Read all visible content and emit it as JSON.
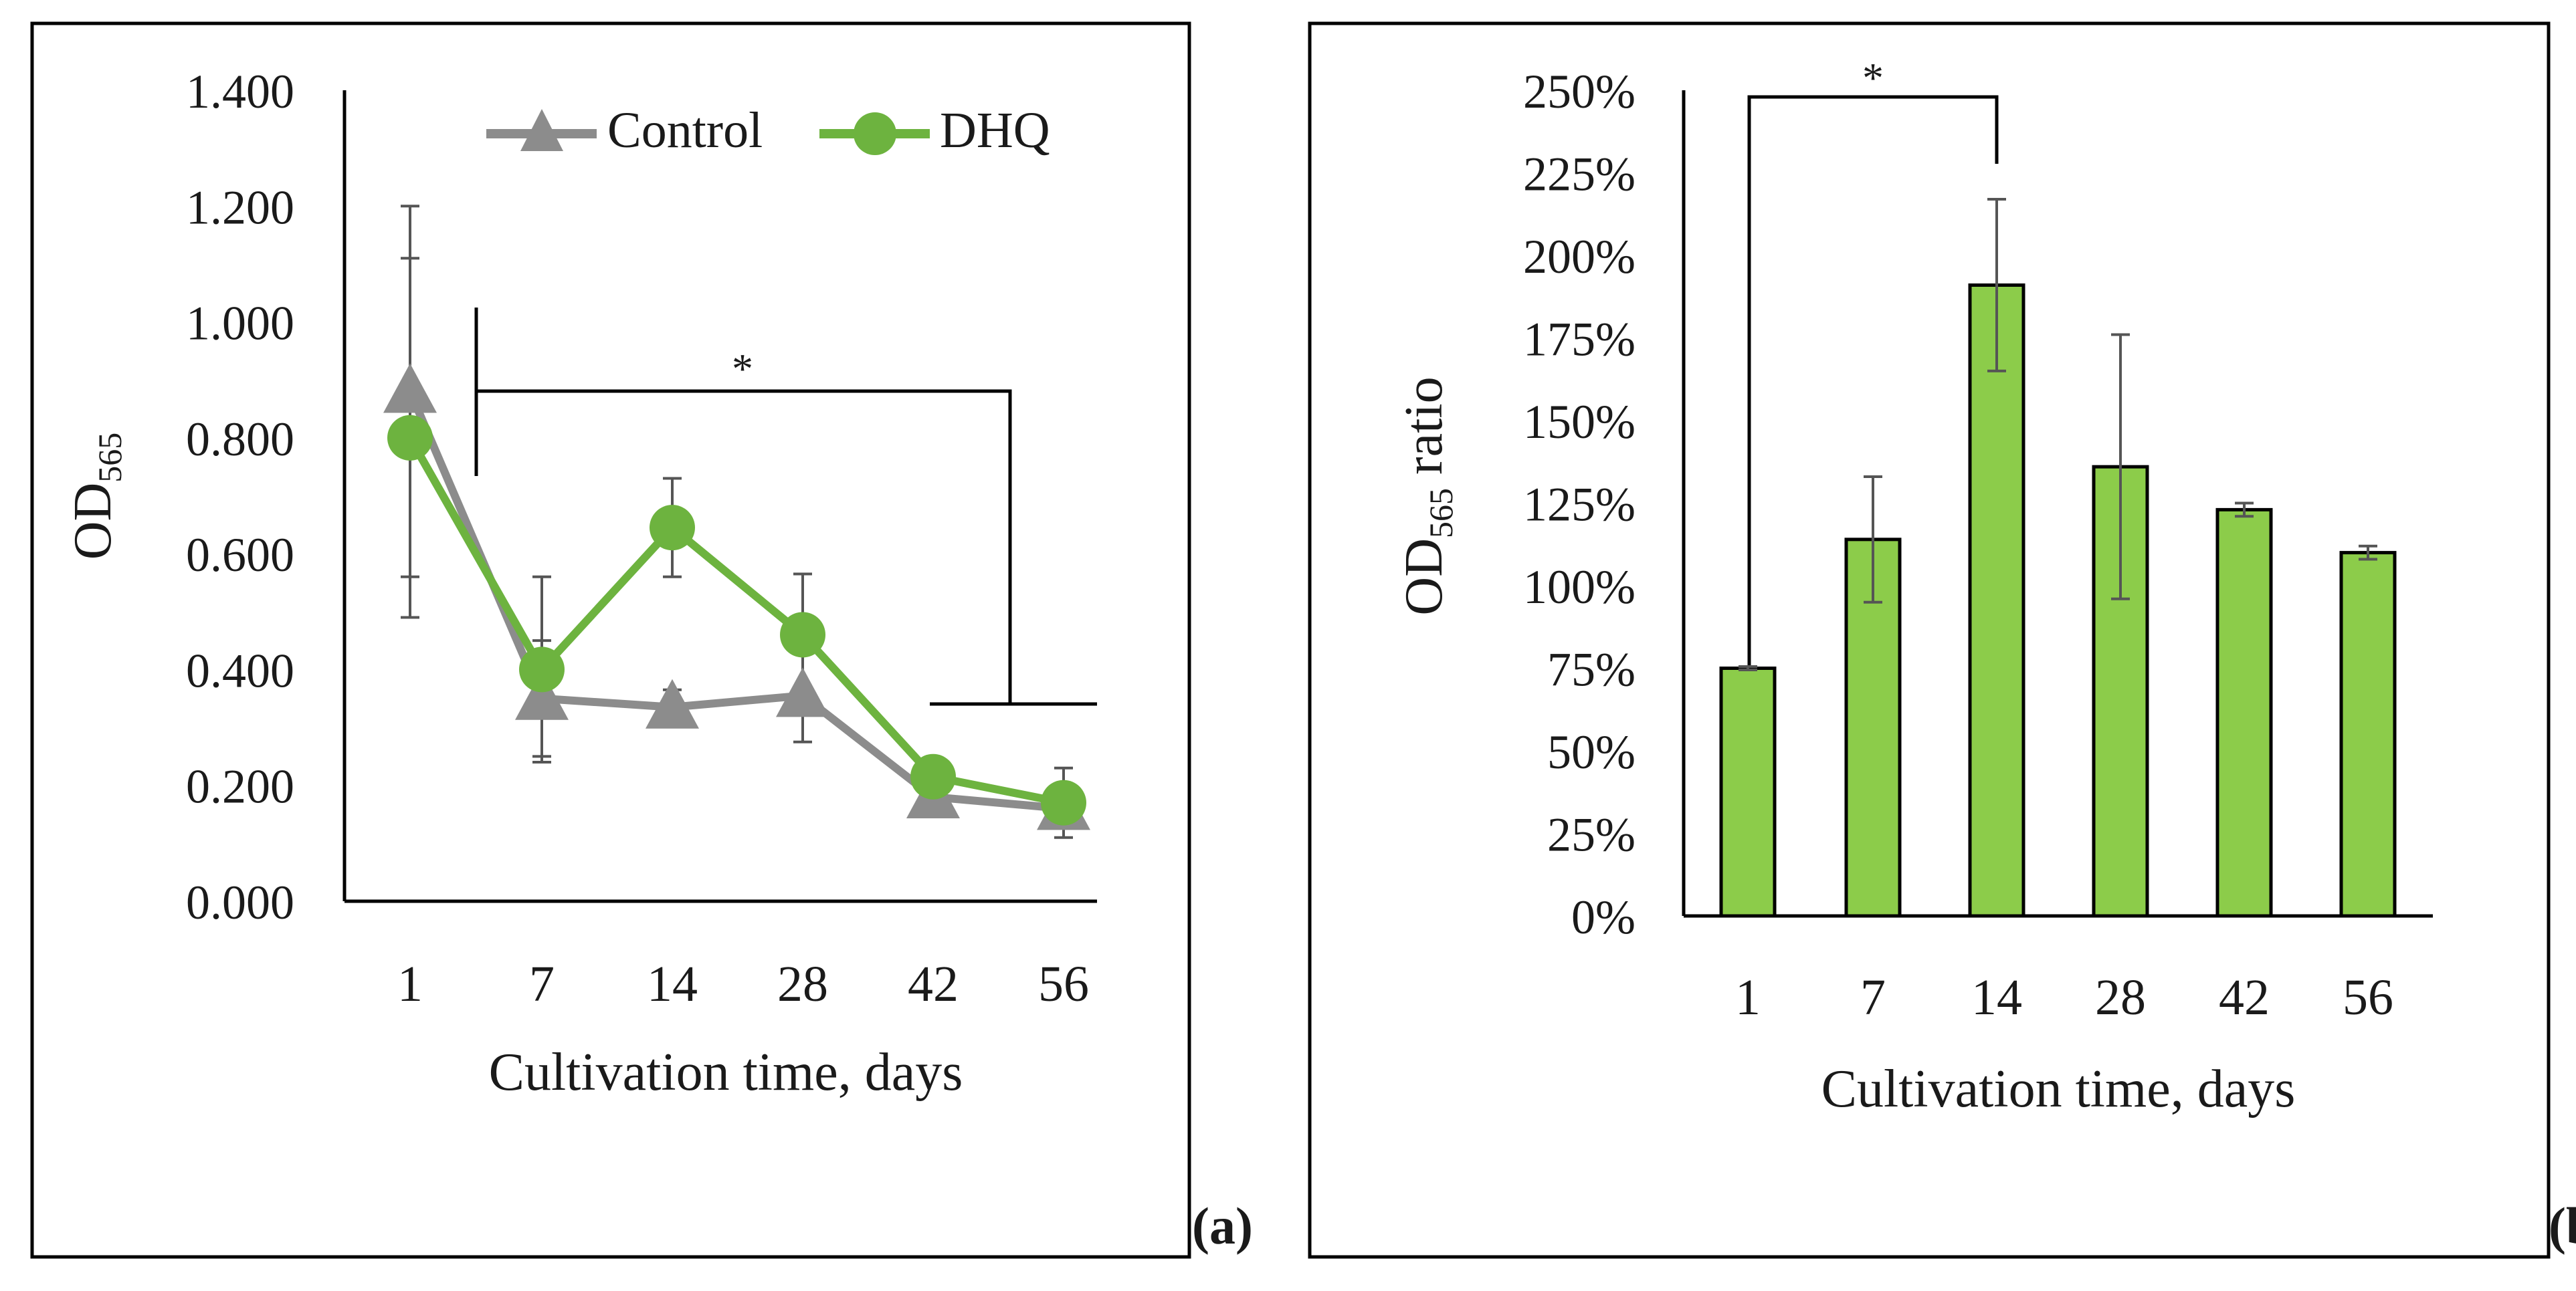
{
  "colors": {
    "control": "#8c8c8c",
    "dhq": "#6db33f",
    "bar_fill": "#8ccc4a",
    "frame": "#000000",
    "error_bar": "#555555"
  },
  "chart_data": [
    {
      "panel": "a",
      "panel_label": "(a)",
      "type": "line",
      "x_categories": [
        "1",
        "7",
        "14",
        "28",
        "42",
        "56"
      ],
      "xlabel": "Cultivation time, days",
      "ylabel_main": "OD",
      "ylabel_sub": "565",
      "ylim": [
        0,
        1.4
      ],
      "y_ticks": [
        "0.000",
        "0.200",
        "0.400",
        "0.600",
        "0.800",
        "1.000",
        "1.200",
        "1.400"
      ],
      "series": [
        {
          "name": "Control",
          "marker": "triangle",
          "values": [
            0.88,
            0.35,
            0.335,
            0.355,
            0.18,
            0.16
          ],
          "errors": [
            0.32,
            0.1,
            0.03,
            0.08,
            0.02,
            0.02
          ]
        },
        {
          "name": "DHQ",
          "marker": "circle",
          "values": [
            0.8,
            0.4,
            0.645,
            0.46,
            0.215,
            0.17
          ],
          "errors": [
            0.31,
            0.16,
            0.085,
            0.105,
            0.02,
            0.06
          ]
        }
      ],
      "annotation": "*"
    },
    {
      "panel": "b",
      "panel_label": "(b)",
      "type": "bar",
      "categories": [
        "1",
        "7",
        "14",
        "28",
        "42",
        "56"
      ],
      "values": [
        75,
        114,
        191,
        136,
        123,
        110
      ],
      "errors": [
        0.5,
        19,
        26,
        40,
        2,
        2
      ],
      "xlabel": "Cultivation time, days",
      "ylabel_main": "OD",
      "ylabel_sub": "565",
      "ylabel_suffix": " ratio",
      "ylim": [
        0,
        250
      ],
      "y_ticks": [
        "0%",
        "25%",
        "50%",
        "75%",
        "100%",
        "125%",
        "150%",
        "175%",
        "200%",
        "225%",
        "250%"
      ],
      "annotation": "*"
    }
  ]
}
